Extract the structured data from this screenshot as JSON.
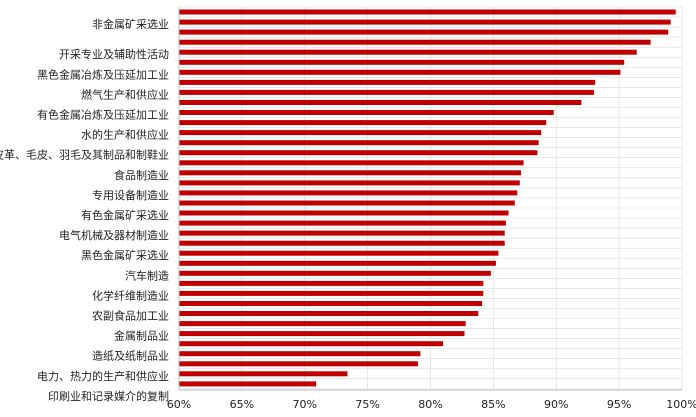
{
  "chart_data": {
    "type": "bar",
    "orientation": "horizontal",
    "title": "",
    "xlabel": "",
    "ylabel": "",
    "xlim": [
      0.6,
      1.0
    ],
    "x_ticks": [
      {
        "value": 0.6,
        "label": "60%"
      },
      {
        "value": 0.65,
        "label": "65%"
      },
      {
        "value": 0.7,
        "label": "70%"
      },
      {
        "value": 0.75,
        "label": "75%"
      },
      {
        "value": 0.8,
        "label": "80%"
      },
      {
        "value": 0.85,
        "label": "85%"
      },
      {
        "value": 0.9,
        "label": "90%"
      },
      {
        "value": 0.95,
        "label": "95%"
      },
      {
        "value": 1.0,
        "label": "100%"
      }
    ],
    "grid": true,
    "bar_color": "#C00000",
    "grid_color": "#D9D9D9",
    "axis_color": "#BFBFBF",
    "bars": [
      {
        "value": 0.995,
        "label": "非金属矿采选业"
      },
      {
        "value": 0.991,
        "label": ""
      },
      {
        "value": 0.989,
        "label": ""
      },
      {
        "value": 0.975,
        "label": "开采专业及辅助性活动"
      },
      {
        "value": 0.964,
        "label": ""
      },
      {
        "value": 0.954,
        "label": "黑色金属冶炼及压延加工业"
      },
      {
        "value": 0.951,
        "label": ""
      },
      {
        "value": 0.931,
        "label": "燃气生产和供应业"
      },
      {
        "value": 0.93,
        "label": ""
      },
      {
        "value": 0.92,
        "label": "有色金属冶炼及压延加工业"
      },
      {
        "value": 0.898,
        "label": ""
      },
      {
        "value": 0.892,
        "label": "水的生产和供应业"
      },
      {
        "value": 0.888,
        "label": ""
      },
      {
        "value": 0.886,
        "label": "皮革、毛皮、羽毛及其制品和制鞋业"
      },
      {
        "value": 0.885,
        "label": ""
      },
      {
        "value": 0.874,
        "label": "食品制造业"
      },
      {
        "value": 0.872,
        "label": ""
      },
      {
        "value": 0.871,
        "label": "专用设备制造业"
      },
      {
        "value": 0.869,
        "label": ""
      },
      {
        "value": 0.867,
        "label": "有色金属矿采选业"
      },
      {
        "value": 0.862,
        "label": ""
      },
      {
        "value": 0.86,
        "label": "电气机械及器材制造业"
      },
      {
        "value": 0.859,
        "label": ""
      },
      {
        "value": 0.859,
        "label": "黑色金属矿采选业"
      },
      {
        "value": 0.854,
        "label": ""
      },
      {
        "value": 0.852,
        "label": "汽车制造"
      },
      {
        "value": 0.848,
        "label": ""
      },
      {
        "value": 0.842,
        "label": "化学纤维制造业"
      },
      {
        "value": 0.842,
        "label": ""
      },
      {
        "value": 0.841,
        "label": "农副食品加工业"
      },
      {
        "value": 0.838,
        "label": ""
      },
      {
        "value": 0.828,
        "label": "金属制品业"
      },
      {
        "value": 0.827,
        "label": ""
      },
      {
        "value": 0.81,
        "label": "造纸及纸制品业"
      },
      {
        "value": 0.792,
        "label": ""
      },
      {
        "value": 0.79,
        "label": "电力、热力的生产和供应业"
      },
      {
        "value": 0.734,
        "label": ""
      },
      {
        "value": 0.709,
        "label": "印刷业和记录媒介的复制"
      }
    ]
  }
}
